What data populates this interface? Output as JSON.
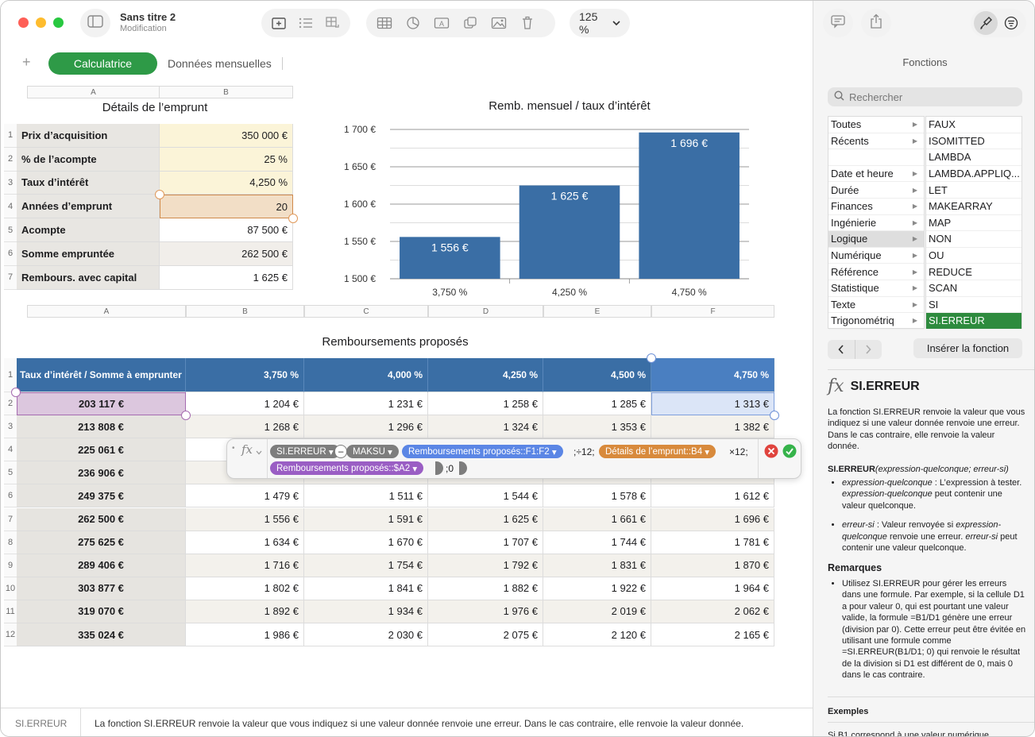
{
  "app": {
    "doc_title": "Sans titre 2",
    "doc_subtitle": "Modification",
    "zoom": "125 %"
  },
  "icons": {
    "sidebar_toggle": "sidebar-icon",
    "insert_table": "insert-table-icon",
    "list": "list-icon",
    "reorganize": "reorganize-icon",
    "table": "table-icon",
    "chart": "chart-icon",
    "text": "text-box-icon",
    "shape": "shape-icon",
    "media": "media-icon",
    "delete": "trash-icon",
    "comment": "comment-icon",
    "share": "share-icon",
    "format": "format-brush-icon",
    "organize": "organize-icon"
  },
  "sheets": {
    "tabs": [
      "Calculatrice",
      "Données mensuelles"
    ],
    "active": "Calculatrice"
  },
  "loan_table": {
    "title": "Détails de l’emprunt",
    "columns": [
      "A",
      "B"
    ],
    "rows": [
      {
        "n": "1",
        "label": "Prix d’acquisition",
        "value": "350 000 €"
      },
      {
        "n": "2",
        "label": "% de l’acompte",
        "value": "25 %"
      },
      {
        "n": "3",
        "label": "Taux d’intérêt",
        "value": "4,250 %"
      },
      {
        "n": "4",
        "label": "Années d’emprunt",
        "value": "20"
      },
      {
        "n": "5",
        "label": "Acompte",
        "value": "87 500 €"
      },
      {
        "n": "6",
        "label": "Somme empruntée",
        "value": "262 500 €"
      },
      {
        "n": "7",
        "label": "Rembours. avec capital",
        "value": "1 625 €"
      }
    ]
  },
  "chart_data": {
    "type": "bar",
    "title": "Remb. mensuel / taux d’intérêt",
    "categories": [
      "3,750 %",
      "4,250 %",
      "4,750 %"
    ],
    "values": [
      1556,
      1625,
      1696
    ],
    "value_labels": [
      "1 556 €",
      "1 625 €",
      "1 696 €"
    ],
    "yticks": [
      "1 500 €",
      "1 550 €",
      "1 600 €",
      "1 650 €",
      "1 700 €"
    ],
    "ylim": [
      1500,
      1700
    ],
    "grid": true,
    "bar_color": "#3a6ea5"
  },
  "payments_table": {
    "title": "Remboursements proposés",
    "columns": [
      "A",
      "B",
      "C",
      "D",
      "E",
      "F"
    ],
    "header": [
      "Taux d’intérêt  / Somme à emprunter",
      "3,750 %",
      "4,000 %",
      "4,250 %",
      "4,500 %",
      "4,750 %"
    ],
    "rows": [
      {
        "n": "2",
        "amount": "203 117 €",
        "vals": [
          "1 204 €",
          "1 231 €",
          "1 258 €",
          "1 285 €",
          "1 313 €"
        ]
      },
      {
        "n": "3",
        "amount": "213 808 €",
        "vals": [
          "1 268 €",
          "1 296 €",
          "1 324 €",
          "1 353 €",
          "1 382 €"
        ]
      },
      {
        "n": "4",
        "amount": "225 061 €",
        "vals": [
          "",
          "",
          "",
          "",
          ""
        ]
      },
      {
        "n": "5",
        "amount": "236 906 €",
        "vals": [
          "",
          "",
          "",
          "",
          ""
        ]
      },
      {
        "n": "6",
        "amount": "249 375 €",
        "vals": [
          "1 479 €",
          "1 511 €",
          "1 544 €",
          "1 578 €",
          "1 612 €"
        ]
      },
      {
        "n": "7",
        "amount": "262 500 €",
        "vals": [
          "1 556 €",
          "1 591 €",
          "1 625 €",
          "1 661 €",
          "1 696 €"
        ]
      },
      {
        "n": "8",
        "amount": "275 625 €",
        "vals": [
          "1 634 €",
          "1 670 €",
          "1 707 €",
          "1 744 €",
          "1 781 €"
        ]
      },
      {
        "n": "9",
        "amount": "289 406 €",
        "vals": [
          "1 716 €",
          "1 754 €",
          "1 792 €",
          "1 831 €",
          "1 870 €"
        ]
      },
      {
        "n": "10",
        "amount": "303 877 €",
        "vals": [
          "1 802 €",
          "1 841 €",
          "1 882 €",
          "1 922 €",
          "1 964 €"
        ]
      },
      {
        "n": "11",
        "amount": "319 070 €",
        "vals": [
          "1 892 €",
          "1 934 €",
          "1 976 €",
          "2 019 €",
          "2 062 €"
        ]
      },
      {
        "n": "12",
        "amount": "335 024 €",
        "vals": [
          "1 986 €",
          "2 030 €",
          "2 075 €",
          "2 120 €",
          "2 165 €"
        ]
      }
    ]
  },
  "formula": {
    "fx": "fx",
    "fn1": "SI.ERREUR",
    "minus": "–",
    "fn2": "MAKSU",
    "ref1": "Remboursements proposés::F1:F2",
    "t1": ";÷12;",
    "ref2": "Détails de l’emprunt::B4",
    "t2": "×12;",
    "ref3": "Remboursements proposés::$A2",
    "t3": ";0"
  },
  "sidebar": {
    "title": "Fonctions",
    "search_placeholder": "Rechercher",
    "categories": [
      "Toutes",
      "Récents",
      "",
      "Date et heure",
      "Durée",
      "Finances",
      "Ingénierie",
      "Logique",
      "Numérique",
      "Référence",
      "Statistique",
      "Texte",
      "Trigonométriq"
    ],
    "selected_category": "Logique",
    "functions": [
      "FAUX",
      "ISOMITTED",
      "LAMBDA",
      "LAMBDA.APPLIQ...",
      "LET",
      "MAKEARRAY",
      "MAP",
      "NON",
      "OU",
      "REDUCE",
      "SCAN",
      "SI",
      "SI.ERREUR"
    ],
    "selected_function": "SI.ERREUR",
    "insert_button": "Insérer la fonction",
    "fn_name": "SI.ERREUR",
    "fn_desc": "La fonction SI.ERREUR renvoie la valeur que vous indiquez si une valeur donnée renvoie une erreur. Dans le cas contraire, elle renvoie la valeur donnée.",
    "syntax_name": "SI.ERREUR",
    "syntax_args": "(expression-quelconque; erreur-si)",
    "arg1_name": "expression-quelconque",
    "arg1_desc": " : L’expression à tester. ",
    "arg1_name2": "expression-quelconque",
    "arg1_desc2": " peut contenir une valeur quelconque.",
    "arg2_name": "erreur-si",
    "arg2_desc": " : Valeur renvoyée si ",
    "arg2_name2": "expression-quelconque",
    "arg2_desc2": " renvoie une erreur. ",
    "arg2_name3": "erreur-si",
    "arg2_desc3": " peut contenir une valeur quelconque.",
    "remarks_title": "Remarques",
    "remarks": "Utilisez SI.ERREUR pour gérer les erreurs dans une formule. Par exemple, si la cellule D1 a pour valeur 0, qui est pourtant une valeur valide, la formule =B1/D1 génère une erreur (division par 0). Cette erreur peut être évitée en utilisant une formule comme =SI.ERREUR(B1/D1; 0) qui renvoie le résultat de la division si D1 est différent de 0, mais 0 dans le cas contraire.",
    "examples_title": "Exemples",
    "examples_cut": "Si B1 correspond à une valeur numérique"
  },
  "status_bar": {
    "fn": "SI.ERREUR",
    "desc": "La fonction SI.ERREUR renvoie la valeur que vous indiquez si une valeur donnée renvoie une erreur. Dans le cas contraire, elle renvoie la valeur donnée."
  }
}
